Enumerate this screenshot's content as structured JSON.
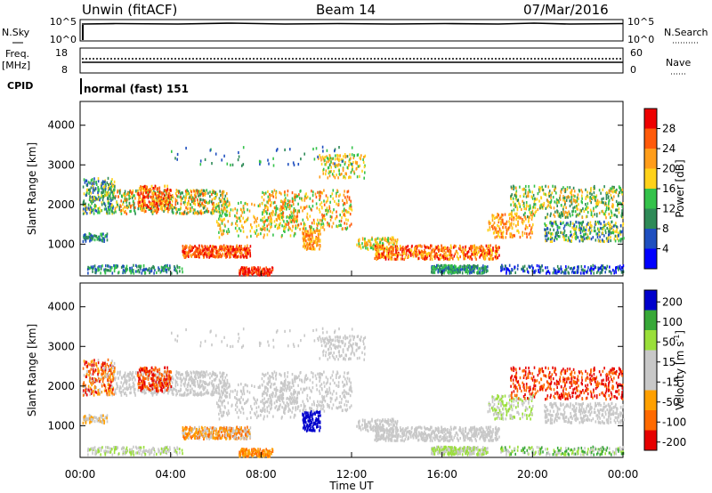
{
  "header": {
    "site": "Unwin (fitACF)",
    "beam": "Beam 14",
    "date": "07/Mar/2016"
  },
  "left_labels": {
    "nsky": "N.Sky",
    "freq": "Freq.",
    "freq_unit": "[MHz]",
    "cpid": "CPID"
  },
  "right_labels": {
    "nsearch": "N.Search",
    "nave": "Nave"
  },
  "cpid_text": "normal (fast) 151",
  "colors": {
    "power": [
      "#0000ff",
      "#1f4fbf",
      "#2e8a57",
      "#34c24a",
      "#ffd21a",
      "#ff9d1a",
      "#ff5a0a",
      "#ee0000"
    ],
    "velocity": [
      "#e60000",
      "#ff6a00",
      "#ffa000",
      "#c8c8c8",
      "#c8c8c8",
      "#9adf3a",
      "#38a838",
      "#0000cc"
    ]
  },
  "chart_data": [
    {
      "type": "line",
      "name": "noise-panel",
      "left_ticks": [
        "10^5",
        "10^0"
      ],
      "right_ticks": [
        "10^5",
        "10^0"
      ]
    },
    {
      "type": "line",
      "name": "frequency-panel",
      "left_ticks": [
        "18",
        "8"
      ],
      "right_ticks": [
        "60",
        "0"
      ]
    },
    {
      "type": "heatmap",
      "name": "power-panel",
      "ylabel": "Slant Range [km]",
      "yticks": [
        "4000",
        "3000",
        "2000",
        "1000"
      ],
      "ylim": [
        200,
        4600
      ],
      "colorbar": {
        "label": "Power [dB]",
        "ticks": [
          "28",
          "24",
          "20",
          "16",
          "12",
          "8",
          "4"
        ],
        "range": [
          0,
          32
        ]
      }
    },
    {
      "type": "heatmap",
      "name": "velocity-panel",
      "ylabel": "Slant Range [km]",
      "yticks": [
        "4000",
        "3000",
        "2000",
        "1000"
      ],
      "ylim": [
        200,
        4600
      ],
      "colorbar": {
        "label": "Velocity [m s^-1]",
        "ticks": [
          "200",
          "100",
          "50",
          "15",
          "-15",
          "-50",
          "-100",
          "-200"
        ]
      }
    }
  ],
  "time_axis": {
    "xlabel": "Time UT",
    "ticks": [
      "00:00",
      "04:00",
      "08:00",
      "12:00",
      "16:00",
      "20:00",
      "00:00"
    ]
  }
}
